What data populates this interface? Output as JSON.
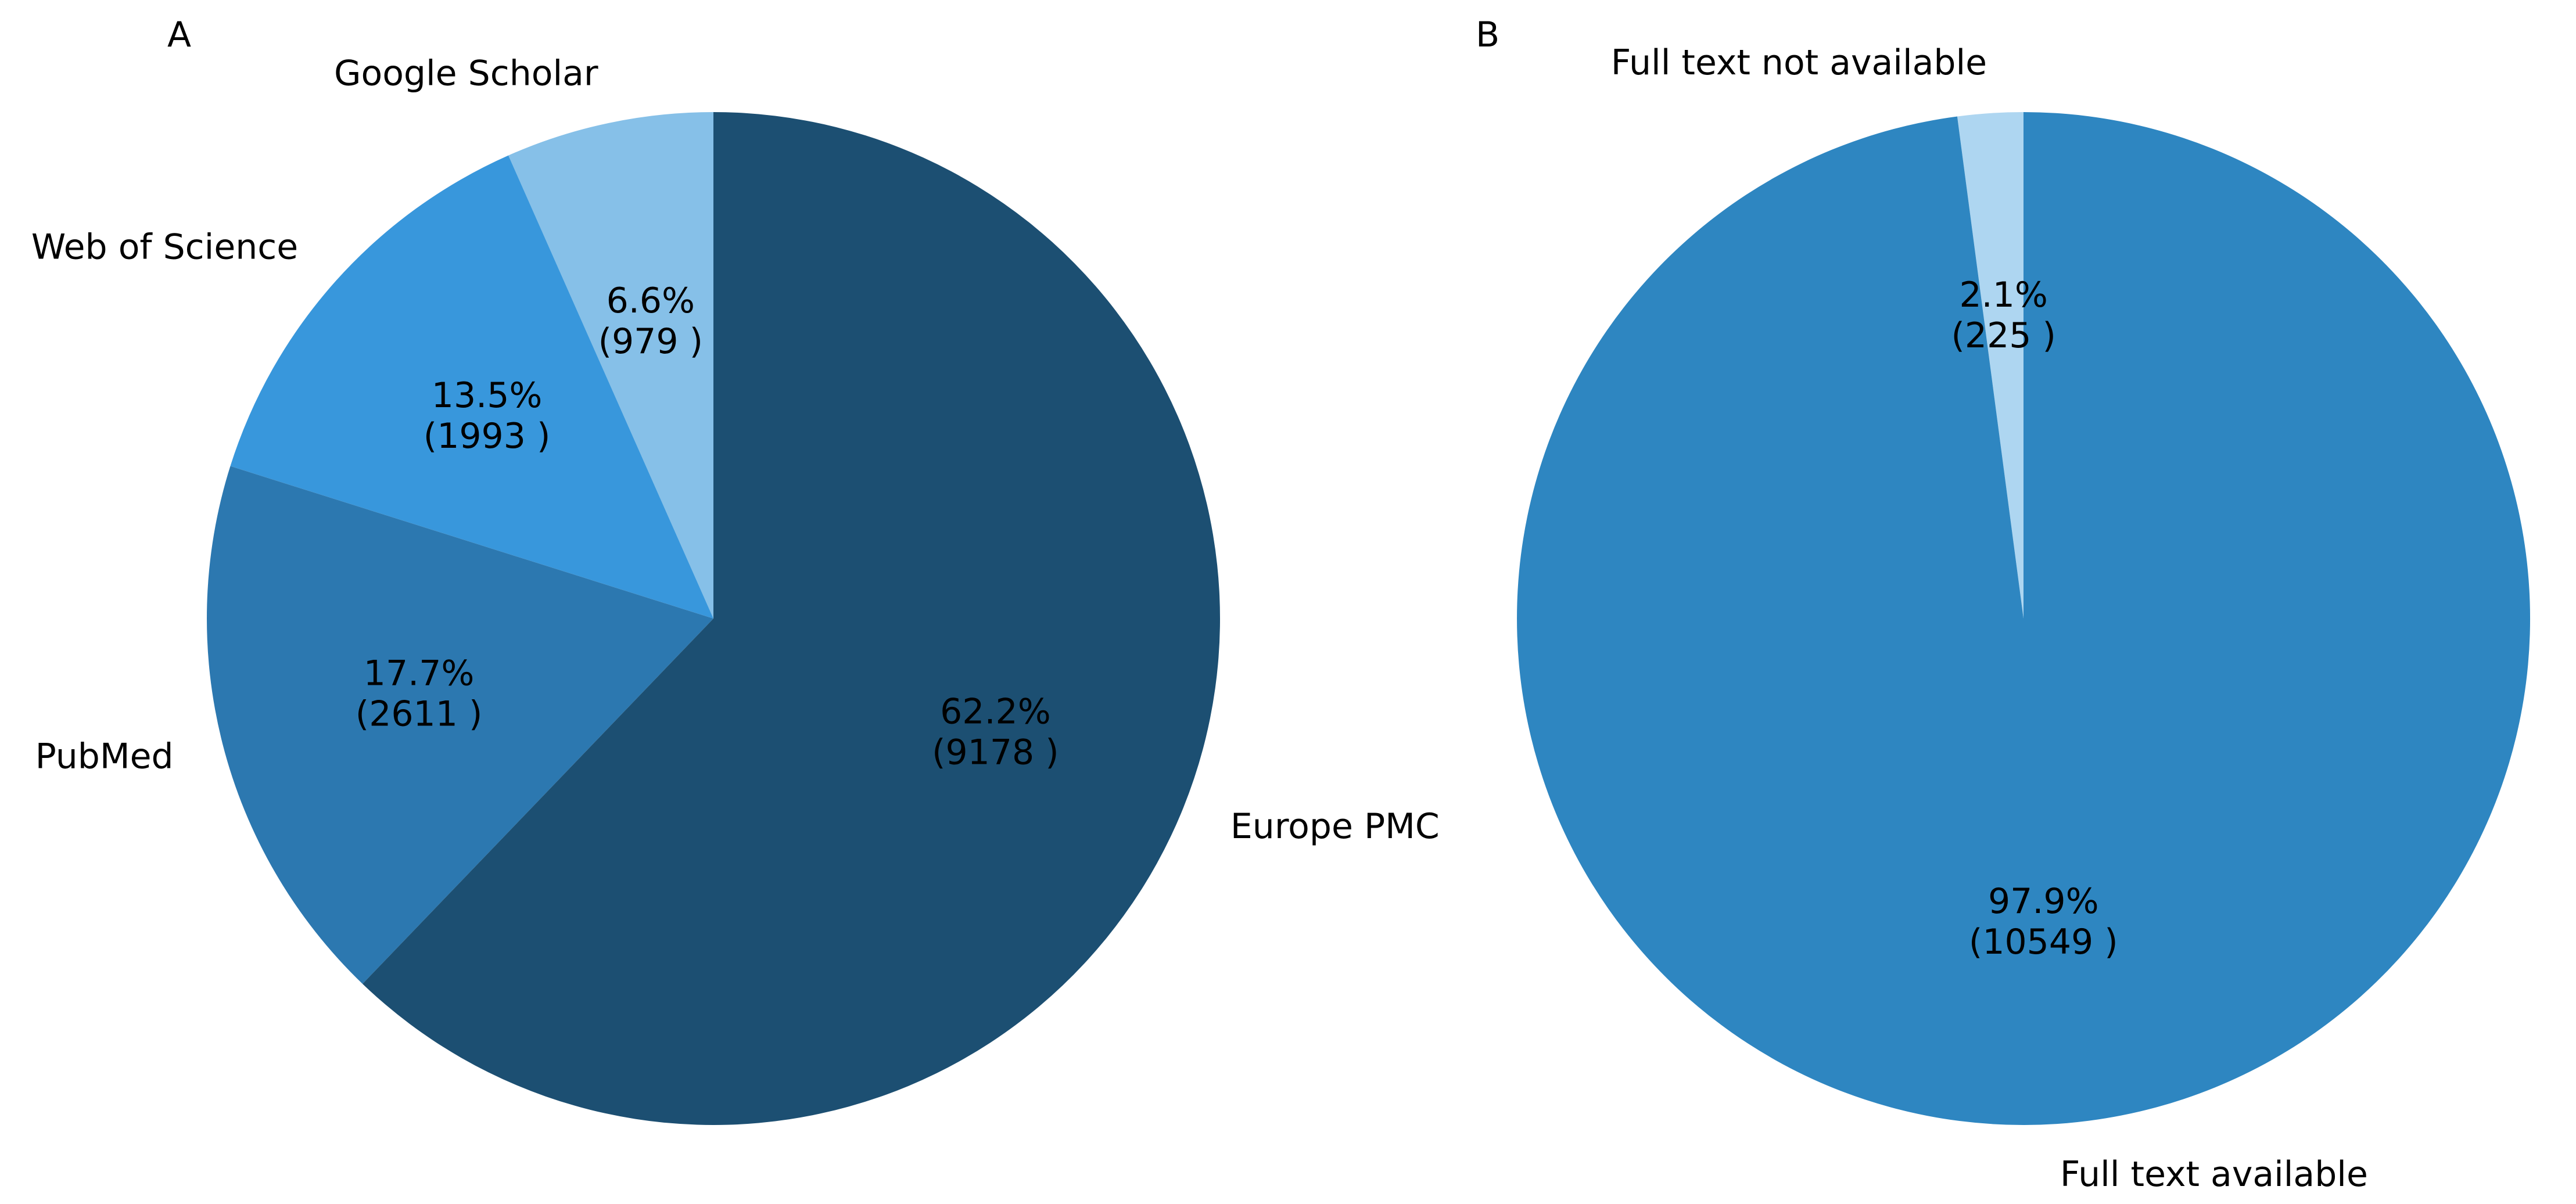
{
  "chart_data": [
    {
      "type": "pie",
      "panel": "A",
      "slices": [
        {
          "label": "Europe PMC",
          "value": 9178,
          "percent": "62.2%",
          "count_text": "(9178 )",
          "color": "#1c4f72"
        },
        {
          "label": "PubMed",
          "value": 2611,
          "percent": "17.7%",
          "count_text": "(2611 )",
          "color": "#2c78b0"
        },
        {
          "label": "Web of Science",
          "value": 1993,
          "percent": "13.5%",
          "count_text": "(1993 )",
          "color": "#3897dc"
        },
        {
          "label": "Google Scholar",
          "value": 979,
          "percent": "6.6%",
          "count_text": "(979 )",
          "color": "#86c0e8"
        }
      ]
    },
    {
      "type": "pie",
      "panel": "B",
      "slices": [
        {
          "label": "Full text available",
          "value": 10549,
          "percent": "97.9%",
          "count_text": "(10549 )",
          "color": "#2e86c1"
        },
        {
          "label": "Full text not available",
          "value": 225,
          "percent": "2.1%",
          "count_text": "(225 )",
          "color": "#aed6f1"
        }
      ]
    }
  ]
}
